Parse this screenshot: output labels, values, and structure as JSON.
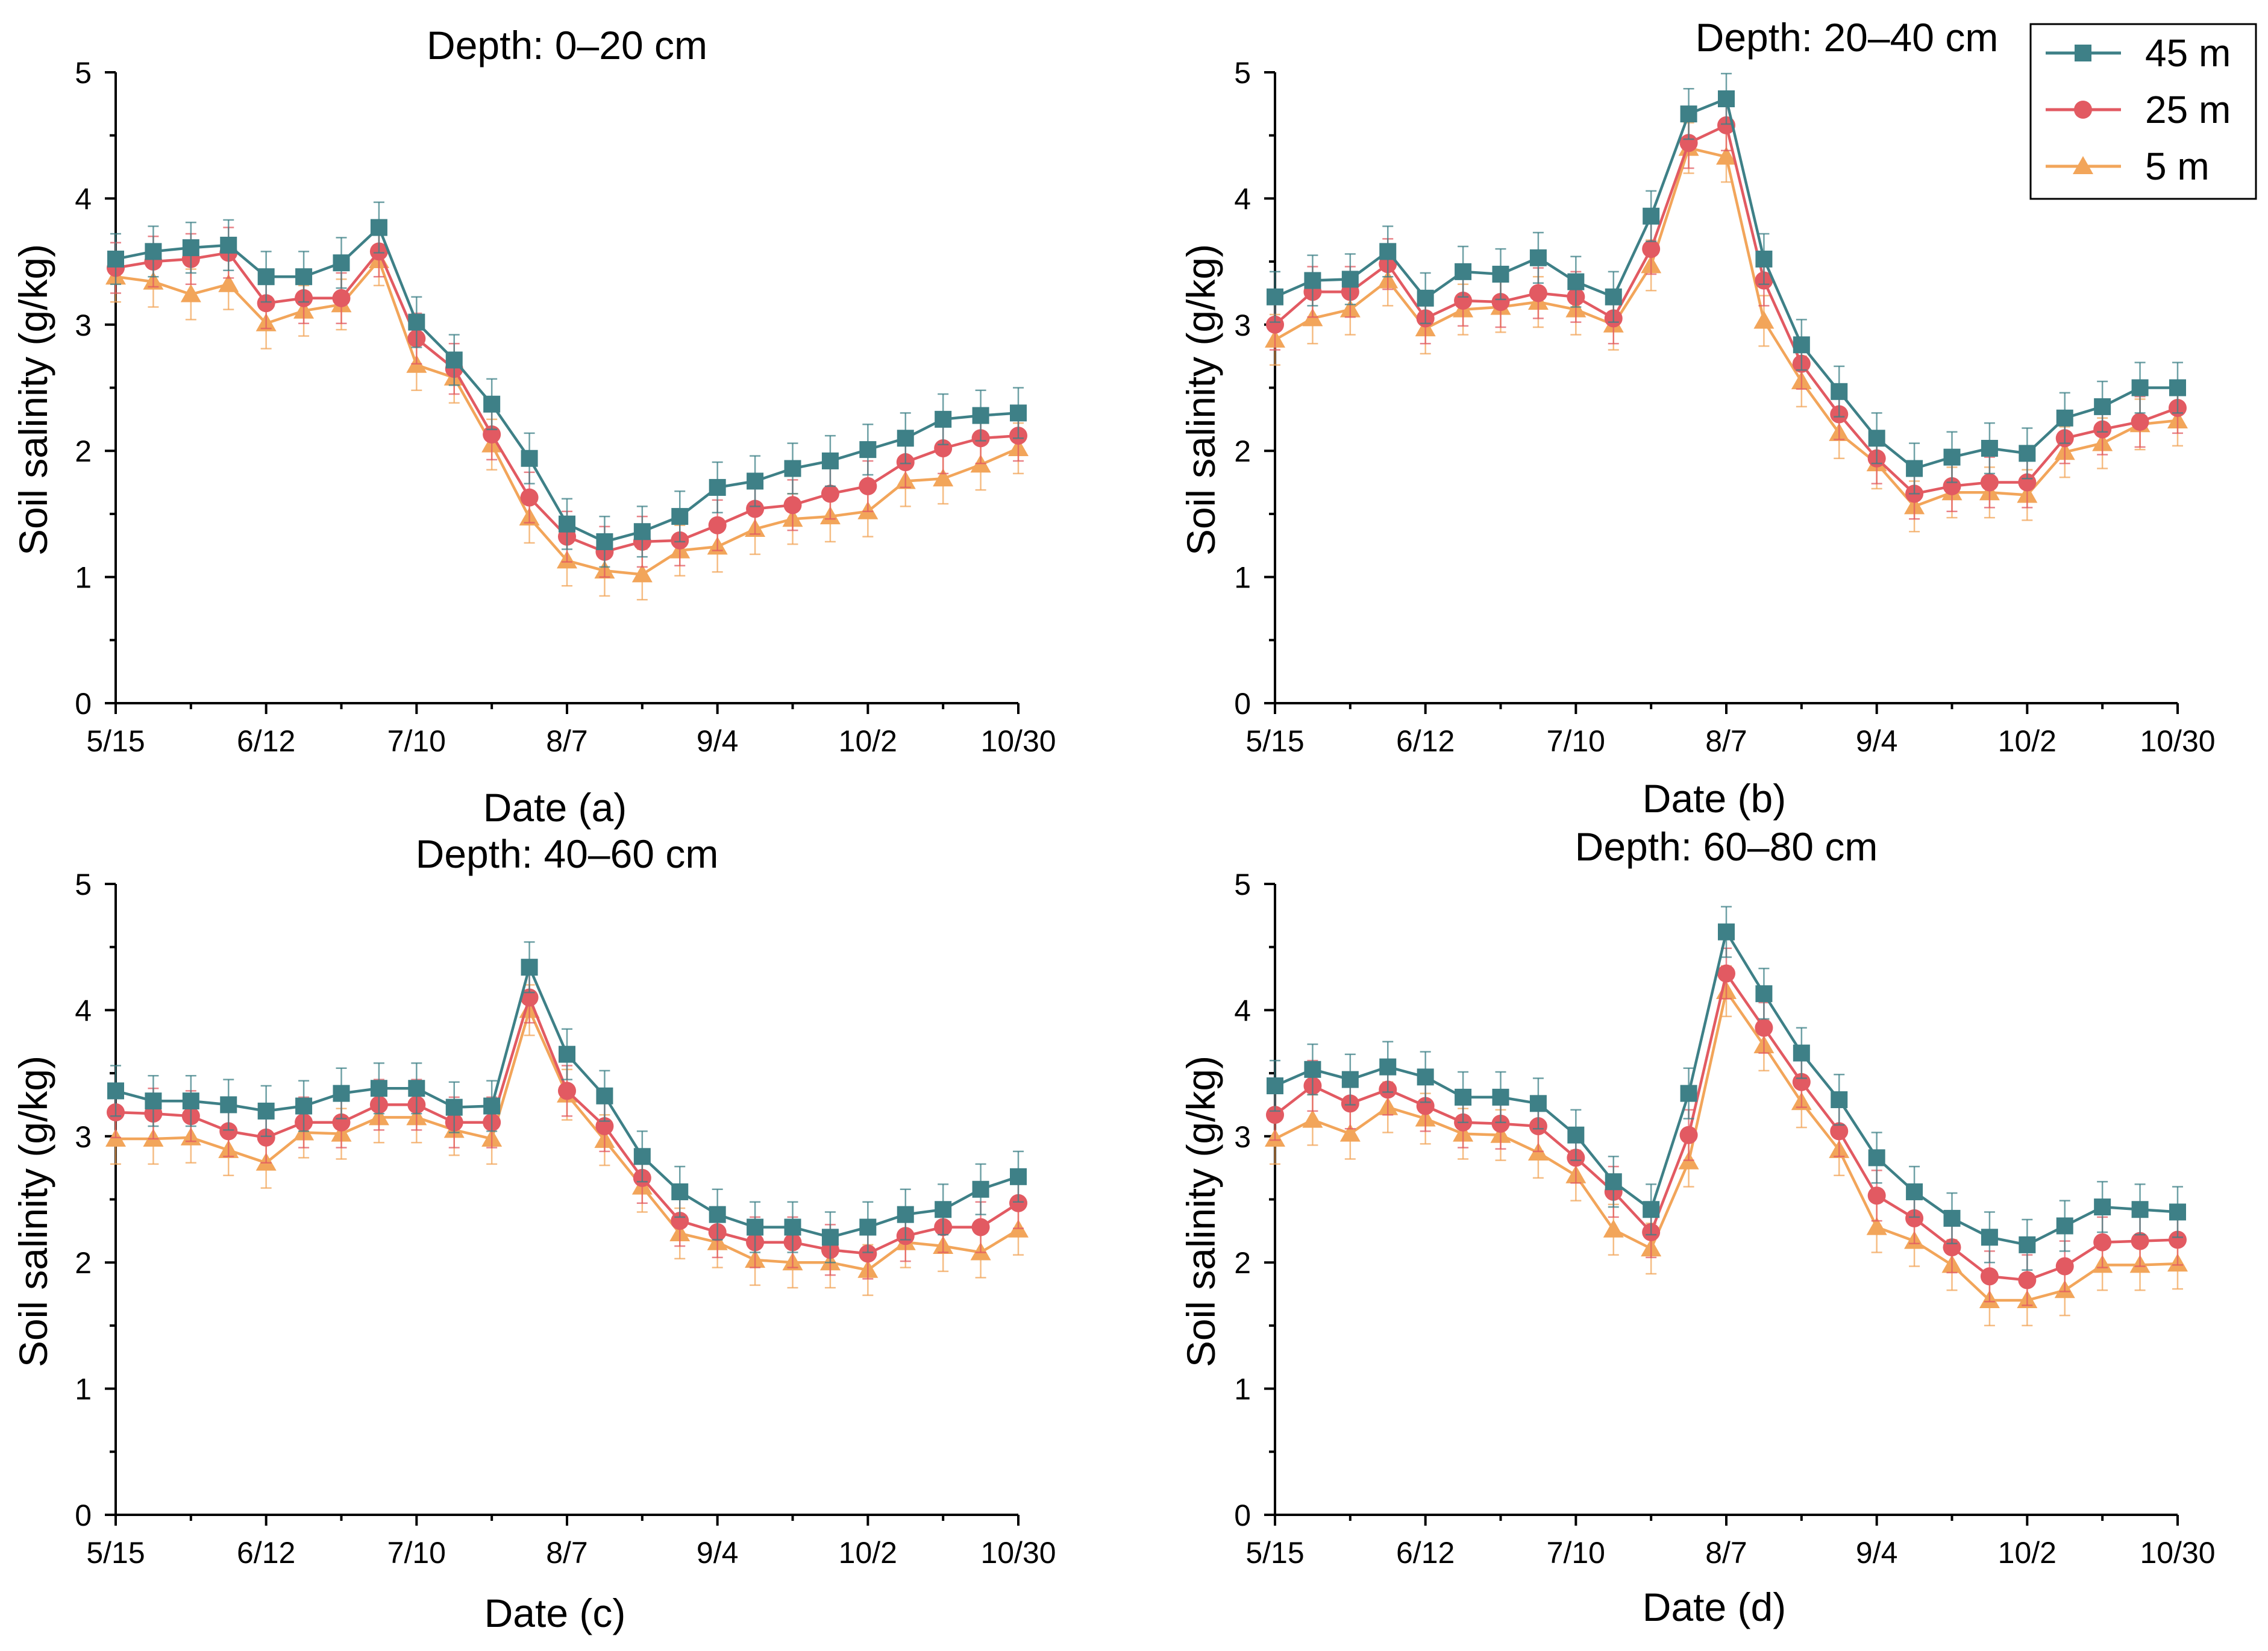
{
  "chart_data": [
    {
      "type": "line",
      "title": "Depth: 0–20 cm",
      "xlabel": "Date (a)",
      "ylabel": "Soil salinity (g/kg)",
      "ylim": [
        0,
        5
      ],
      "yticks": [
        "0",
        "1",
        "2",
        "3",
        "4",
        "5"
      ],
      "xlim": [
        0,
        168
      ],
      "xticks": [
        {
          "label": "5/15",
          "day": 0
        },
        {
          "label": "6/12",
          "day": 28
        },
        {
          "label": "7/10",
          "day": 56
        },
        {
          "label": "8/7",
          "day": 84
        },
        {
          "label": "9/4",
          "day": 112
        },
        {
          "label": "10/2",
          "day": 140
        },
        {
          "label": "10/30",
          "day": 168
        }
      ],
      "x": [
        0,
        7,
        14,
        21,
        28,
        35,
        42,
        49,
        56,
        63,
        70,
        77,
        84,
        91,
        98,
        105,
        112,
        119,
        126,
        133,
        140,
        147,
        154,
        161,
        168
      ],
      "series": [
        {
          "name": "45 m",
          "values": [
            3.52,
            3.58,
            3.61,
            3.63,
            3.38,
            3.38,
            3.49,
            3.77,
            3.02,
            2.72,
            2.37,
            1.94,
            1.42,
            1.28,
            1.36,
            1.48,
            1.71,
            1.76,
            1.86,
            1.92,
            2.01,
            2.1,
            2.25,
            2.28,
            2.3
          ]
        },
        {
          "name": "25 m",
          "values": [
            3.45,
            3.5,
            3.52,
            3.57,
            3.17,
            3.21,
            3.21,
            3.58,
            2.89,
            2.65,
            2.13,
            1.63,
            1.32,
            1.2,
            1.28,
            1.29,
            1.41,
            1.54,
            1.57,
            1.66,
            1.72,
            1.91,
            2.02,
            2.1,
            2.12
          ]
        },
        {
          "name": "5 m",
          "values": [
            3.38,
            3.34,
            3.24,
            3.32,
            3.01,
            3.11,
            3.16,
            3.51,
            2.68,
            2.58,
            2.05,
            1.47,
            1.13,
            1.05,
            1.02,
            1.21,
            1.24,
            1.38,
            1.46,
            1.48,
            1.52,
            1.76,
            1.78,
            1.89,
            2.02
          ]
        }
      ]
    },
    {
      "type": "line",
      "title": "Depth: 20–40 cm",
      "xlabel": "Date (b)",
      "ylabel": "Soil salinity (g/kg)",
      "ylim": [
        0,
        5
      ],
      "yticks": [
        "0",
        "1",
        "2",
        "3",
        "4",
        "5"
      ],
      "xlim": [
        0,
        168
      ],
      "xticks": [
        {
          "label": "5/15",
          "day": 0
        },
        {
          "label": "6/12",
          "day": 28
        },
        {
          "label": "7/10",
          "day": 56
        },
        {
          "label": "8/7",
          "day": 84
        },
        {
          "label": "9/4",
          "day": 112
        },
        {
          "label": "10/2",
          "day": 140
        },
        {
          "label": "10/30",
          "day": 168
        }
      ],
      "x": [
        0,
        7,
        14,
        21,
        28,
        35,
        42,
        49,
        56,
        63,
        70,
        77,
        84,
        91,
        98,
        105,
        112,
        119,
        126,
        133,
        140,
        147,
        154,
        161,
        168
      ],
      "series": [
        {
          "name": "45 m",
          "values": [
            3.22,
            3.35,
            3.36,
            3.58,
            3.21,
            3.42,
            3.4,
            3.53,
            3.34,
            3.22,
            3.86,
            4.67,
            4.79,
            3.52,
            2.84,
            2.47,
            2.1,
            1.86,
            1.95,
            2.02,
            1.98,
            2.26,
            2.35,
            2.5,
            2.5
          ]
        },
        {
          "name": "25 m",
          "values": [
            3.0,
            3.26,
            3.26,
            3.48,
            3.05,
            3.19,
            3.18,
            3.25,
            3.22,
            3.05,
            3.6,
            4.44,
            4.58,
            3.35,
            2.69,
            2.29,
            1.94,
            1.66,
            1.72,
            1.75,
            1.75,
            2.1,
            2.17,
            2.23,
            2.34
          ]
        },
        {
          "name": "5 m",
          "values": [
            2.88,
            3.05,
            3.12,
            3.35,
            2.97,
            3.12,
            3.14,
            3.18,
            3.12,
            3.0,
            3.47,
            4.4,
            4.33,
            3.03,
            2.55,
            2.14,
            1.9,
            1.56,
            1.67,
            1.67,
            1.65,
            1.99,
            2.06,
            2.21,
            2.24
          ]
        }
      ]
    },
    {
      "type": "line",
      "title": "Depth: 40–60 cm",
      "xlabel": "Date (c)",
      "ylabel": "Soil salinity (g/kg)",
      "ylim": [
        0,
        5
      ],
      "yticks": [
        "0",
        "1",
        "2",
        "3",
        "4",
        "5"
      ],
      "xlim": [
        0,
        168
      ],
      "xticks": [
        {
          "label": "5/15",
          "day": 0
        },
        {
          "label": "6/12",
          "day": 28
        },
        {
          "label": "7/10",
          "day": 56
        },
        {
          "label": "8/7",
          "day": 84
        },
        {
          "label": "9/4",
          "day": 112
        },
        {
          "label": "10/2",
          "day": 140
        },
        {
          "label": "10/30",
          "day": 168
        }
      ],
      "x": [
        0,
        7,
        14,
        21,
        28,
        35,
        42,
        49,
        56,
        63,
        70,
        77,
        84,
        91,
        98,
        105,
        112,
        119,
        126,
        133,
        140,
        147,
        154,
        161,
        168
      ],
      "series": [
        {
          "name": "45 m",
          "values": [
            3.36,
            3.28,
            3.28,
            3.25,
            3.2,
            3.24,
            3.34,
            3.38,
            3.38,
            3.23,
            3.24,
            4.34,
            3.65,
            3.32,
            2.84,
            2.56,
            2.38,
            2.28,
            2.28,
            2.2,
            2.28,
            2.38,
            2.42,
            2.58,
            2.68
          ]
        },
        {
          "name": "25 m",
          "values": [
            3.19,
            3.18,
            3.16,
            3.04,
            2.99,
            3.11,
            3.11,
            3.25,
            3.25,
            3.11,
            3.11,
            4.1,
            3.36,
            3.08,
            2.67,
            2.33,
            2.24,
            2.16,
            2.16,
            2.1,
            2.07,
            2.21,
            2.28,
            2.28,
            2.47
          ]
        },
        {
          "name": "5 m",
          "values": [
            2.98,
            2.98,
            2.99,
            2.89,
            2.79,
            3.03,
            3.02,
            3.15,
            3.15,
            3.05,
            2.98,
            4.0,
            3.33,
            2.97,
            2.6,
            2.23,
            2.16,
            2.02,
            2.0,
            2.0,
            1.94,
            2.16,
            2.13,
            2.08,
            2.26
          ]
        }
      ]
    },
    {
      "type": "line",
      "title": "Depth: 60–80 cm",
      "xlabel": "Date (d)",
      "ylabel": "Soil salinity (g/kg)",
      "ylim": [
        0,
        5
      ],
      "yticks": [
        "0",
        "1",
        "2",
        "3",
        "4",
        "5"
      ],
      "xlim": [
        0,
        168
      ],
      "xticks": [
        {
          "label": "5/15",
          "day": 0
        },
        {
          "label": "6/12",
          "day": 28
        },
        {
          "label": "7/10",
          "day": 56
        },
        {
          "label": "8/7",
          "day": 84
        },
        {
          "label": "9/4",
          "day": 112
        },
        {
          "label": "10/2",
          "day": 140
        },
        {
          "label": "10/30",
          "day": 168
        }
      ],
      "x": [
        0,
        7,
        14,
        21,
        28,
        35,
        42,
        49,
        56,
        63,
        70,
        77,
        84,
        91,
        98,
        105,
        112,
        119,
        126,
        133,
        140,
        147,
        154,
        161,
        168
      ],
      "series": [
        {
          "name": "45 m",
          "values": [
            3.4,
            3.53,
            3.45,
            3.55,
            3.47,
            3.31,
            3.31,
            3.26,
            3.01,
            2.64,
            2.42,
            3.34,
            4.62,
            4.13,
            3.66,
            3.29,
            2.83,
            2.56,
            2.35,
            2.2,
            2.14,
            2.29,
            2.44,
            2.42,
            2.4
          ]
        },
        {
          "name": "25 m",
          "values": [
            3.17,
            3.4,
            3.26,
            3.37,
            3.24,
            3.11,
            3.1,
            3.08,
            2.83,
            2.56,
            2.24,
            3.01,
            4.29,
            3.86,
            3.43,
            3.04,
            2.53,
            2.35,
            2.12,
            1.89,
            1.86,
            1.97,
            2.16,
            2.17,
            2.18
          ]
        },
        {
          "name": "5 m",
          "values": [
            2.98,
            3.13,
            3.02,
            3.23,
            3.14,
            3.02,
            3.01,
            2.87,
            2.69,
            2.26,
            2.11,
            2.8,
            4.15,
            3.72,
            3.27,
            2.89,
            2.28,
            2.17,
            1.98,
            1.7,
            1.7,
            1.78,
            1.98,
            1.98,
            1.99
          ]
        }
      ]
    }
  ],
  "legend": {
    "position": "top-right",
    "entries": [
      {
        "name": "45 m",
        "marker": "square",
        "color": "#3e8087"
      },
      {
        "name": "25 m",
        "marker": "circle",
        "color": "#e25a62"
      },
      {
        "name": "5 m",
        "marker": "triangle",
        "color": "#f2a55a"
      }
    ]
  },
  "colors": {
    "45 m": "#3e8087",
    "25 m": "#e25a62",
    "5 m": "#f2a55a"
  },
  "error_bar": 0.2
}
